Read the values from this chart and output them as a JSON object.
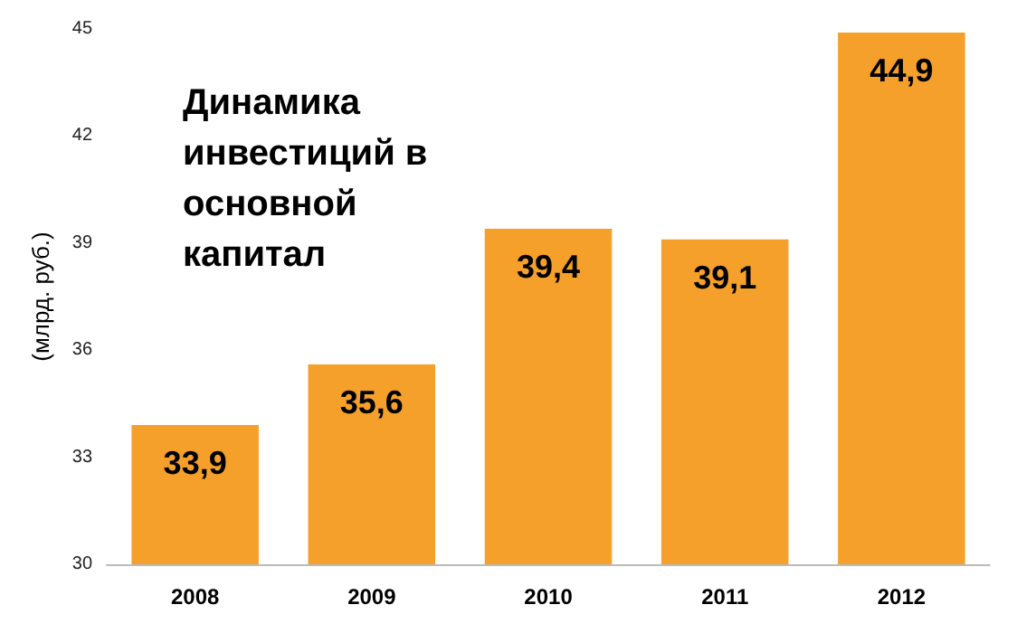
{
  "chart_data": {
    "type": "bar",
    "title": "Динамика инвестиций в основной капитал",
    "ylabel": "(млрд. руб.)",
    "categories": [
      "2008",
      "2009",
      "2010",
      "2011",
      "2012"
    ],
    "values": [
      33.9,
      35.6,
      39.4,
      39.1,
      44.9
    ],
    "color": "#f5a02a",
    "value_labels": [
      "33,9",
      "35,6",
      "39,4",
      "39,1",
      "44,9"
    ],
    "ylim": [
      30,
      45
    ],
    "yticks": [
      30,
      33,
      36,
      39,
      42,
      45
    ],
    "grid": false
  }
}
